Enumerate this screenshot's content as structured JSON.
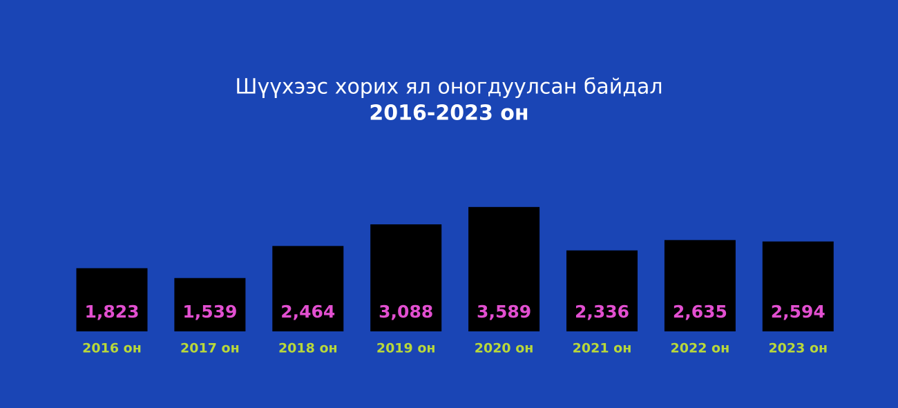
{
  "chart_data": {
    "type": "bar",
    "title": "Шүүхээс хорих ял оногдуулсан байдал",
    "subtitle": "2016-2023 он",
    "categories": [
      "2016 он",
      "2017 он",
      "2018 он",
      "2019 он",
      "2020 он",
      "2021 он",
      "2022 он",
      "2023 он"
    ],
    "values": [
      1823,
      1539,
      2464,
      3088,
      3589,
      2336,
      2635,
      2594
    ],
    "value_labels": [
      "1,823",
      "1,539",
      "2,464",
      "3,088",
      "3,589",
      "2,336",
      "2,635",
      "2,594"
    ],
    "color": "#000000"
  }
}
